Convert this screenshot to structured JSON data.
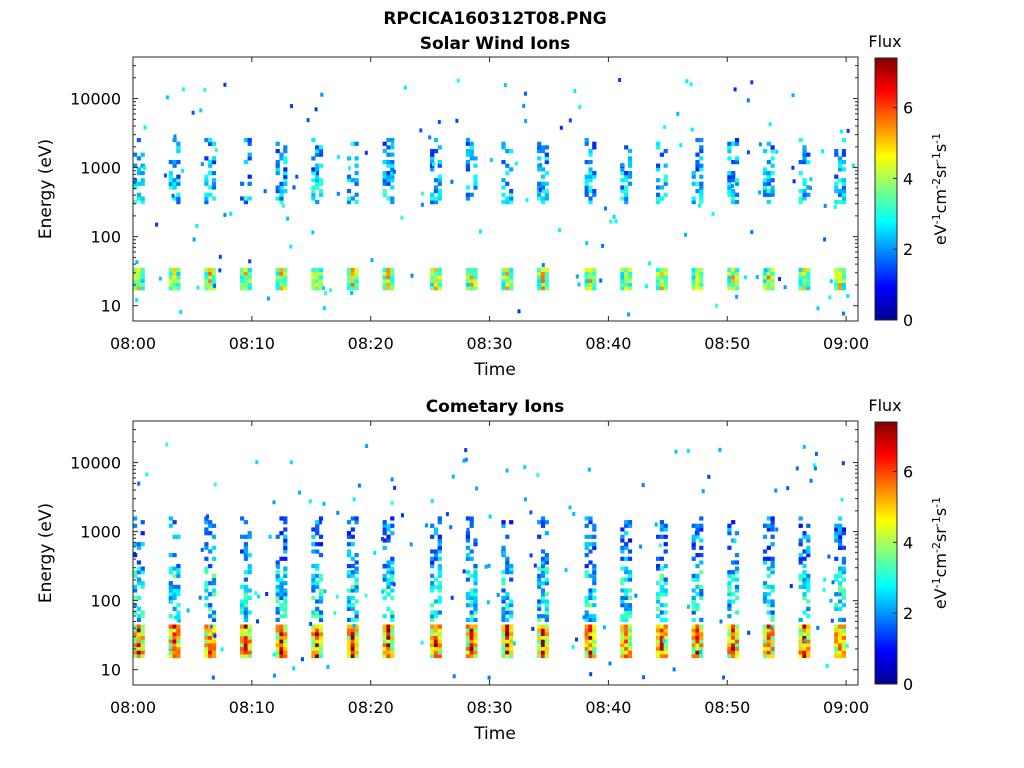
{
  "figure": {
    "title": "RPCICA160312T08.PNG"
  },
  "colorbar": {
    "label": "Flux",
    "unit_text": "eV-1cm-2sr-1s-1",
    "ticks": [
      "0",
      "2",
      "4",
      "6"
    ],
    "range": [
      0,
      7.4
    ],
    "colormap": "jet"
  },
  "chart_data": [
    {
      "type": "heatmap",
      "title": "Solar Wind Ions",
      "xlabel": "Time",
      "ylabel": "Energy (eV)",
      "yscale": "log",
      "xlim": [
        "08:00",
        "09:01"
      ],
      "ylim": [
        6,
        40000
      ],
      "xticks": [
        "08:00",
        "08:10",
        "08:20",
        "08:30",
        "08:40",
        "08:50",
        "09:00"
      ],
      "yticks": [
        "10",
        "100",
        "1000",
        "10000"
      ],
      "cycle_starts_min": [
        0,
        3,
        6,
        9,
        12,
        15,
        18,
        21,
        25,
        28,
        31,
        34,
        38,
        41,
        44,
        47,
        50,
        53,
        56,
        59
      ],
      "bands": [
        {
          "name": "low",
          "e_min": 17,
          "e_max": 35,
          "flux": 4.8
        },
        {
          "name": "mid",
          "e_min": 300,
          "e_max": 700,
          "flux": 2.8
        },
        {
          "name": "high",
          "e_min": 700,
          "e_max": 2500,
          "flux": 2.3
        }
      ]
    },
    {
      "type": "heatmap",
      "title": "Cometary Ions",
      "xlabel": "Time",
      "ylabel": "Energy (eV)",
      "yscale": "log",
      "xlim": [
        "08:00",
        "09:01"
      ],
      "ylim": [
        6,
        40000
      ],
      "xticks": [
        "08:00",
        "08:10",
        "08:20",
        "08:30",
        "08:40",
        "08:50",
        "09:00"
      ],
      "yticks": [
        "10",
        "100",
        "1000",
        "10000"
      ],
      "cycle_starts_min": [
        0,
        3,
        6,
        9,
        12,
        15,
        18,
        21,
        25,
        28,
        31,
        34,
        38,
        41,
        44,
        47,
        50,
        53,
        56,
        59
      ],
      "bands": [
        {
          "name": "low",
          "e_min": 15,
          "e_max": 45,
          "flux": 6.3
        },
        {
          "name": "mid",
          "e_min": 50,
          "e_max": 300,
          "flux": 3.0
        },
        {
          "name": "high",
          "e_min": 300,
          "e_max": 1500,
          "flux": 2.0
        }
      ]
    }
  ]
}
